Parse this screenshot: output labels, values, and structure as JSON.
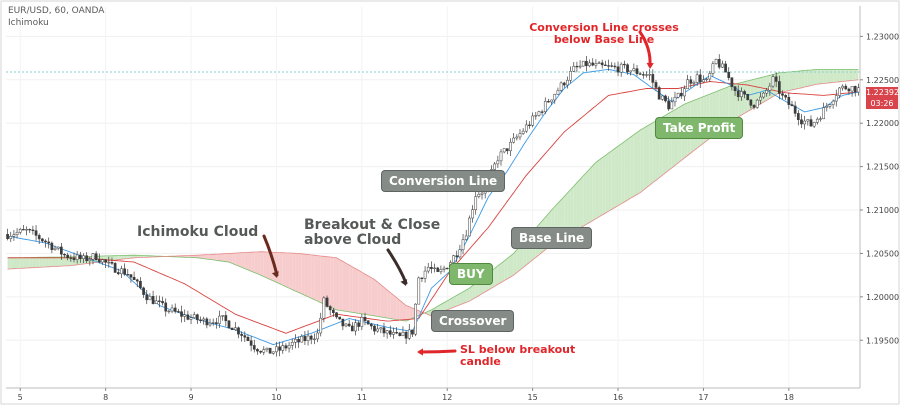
{
  "header": {
    "symbol_line": "EUR/USD, 60, OANDA",
    "indicator_line": "Ichimoku"
  },
  "colors": {
    "candle": "#3c3c3c",
    "conversion_line": "#3d9be8",
    "base_line": "#d9433f",
    "cloud_bull": "#cfe9c8",
    "cloud_bear": "#f7cccc",
    "annotation_box": "#858c88",
    "trade_box": "#7fb86d",
    "annotation_red": "#e0262a"
  },
  "annotations": {
    "conversion_crosses": "Conversion Line crosses below Base Line",
    "conversion_crosses_l1": "Conversion Line crosses",
    "conversion_crosses_l2": "below Base Line",
    "ichimoku_cloud": "Ichimoku Cloud",
    "breakout_l1": "Breakout & Close",
    "breakout_l2": "above Cloud",
    "conversion_line": "Conversion Line",
    "base_line": "Base Line",
    "buy": "BUY",
    "crossover": "Crossover",
    "take_profit": "Take Profit",
    "sl_l1": "SL below breakout",
    "sl_l2": "candle"
  },
  "price_tag": {
    "price": "1.22392",
    "countdown": "03:26"
  },
  "chart_data": {
    "type": "line",
    "chart_style": "candlestick with Ichimoku cloud",
    "x_ticks": [
      "5",
      "8",
      "9",
      "10",
      "11",
      "12",
      "15",
      "16",
      "17",
      "18"
    ],
    "y_ticks": [
      1.195,
      1.2,
      1.205,
      1.21,
      1.215,
      1.22,
      1.225,
      1.23
    ],
    "ylim": [
      1.1895,
      1.2335
    ],
    "grid": true,
    "reference_level": 1.2259,
    "price_path": [
      [
        0,
        1.2072
      ],
      [
        6,
        1.2076
      ],
      [
        12,
        1.2064
      ],
      [
        18,
        1.2048
      ],
      [
        24,
        1.2043
      ],
      [
        28,
        1.2047
      ],
      [
        32,
        1.2036
      ],
      [
        38,
        1.2027
      ],
      [
        44,
        1.2001
      ],
      [
        50,
        1.1986
      ],
      [
        56,
        1.1978
      ],
      [
        62,
        1.1972
      ],
      [
        68,
        1.1974
      ],
      [
        74,
        1.1958
      ],
      [
        78,
        1.1943
      ],
      [
        82,
        1.1936
      ],
      [
        86,
        1.1939
      ],
      [
        90,
        1.1946
      ],
      [
        94,
        1.1951
      ],
      [
        98,
        1.1957
      ],
      [
        100,
        1.1995
      ],
      [
        104,
        1.1973
      ],
      [
        108,
        1.1962
      ],
      [
        112,
        1.1972
      ],
      [
        116,
        1.1963
      ],
      [
        120,
        1.1958
      ],
      [
        124,
        1.1953
      ],
      [
        128,
        1.196
      ],
      [
        130,
        1.2022
      ],
      [
        133,
        1.2034
      ],
      [
        136,
        1.2026
      ],
      [
        139,
        1.2036
      ],
      [
        142,
        1.2051
      ],
      [
        145,
        1.2075
      ],
      [
        148,
        1.2118
      ],
      [
        151,
        1.2124
      ],
      [
        155,
        1.216
      ],
      [
        159,
        1.2175
      ],
      [
        163,
        1.2192
      ],
      [
        167,
        1.2208
      ],
      [
        171,
        1.2226
      ],
      [
        175,
        1.2243
      ],
      [
        179,
        1.2262
      ],
      [
        183,
        1.2268
      ],
      [
        187,
        1.2265
      ],
      [
        191,
        1.2264
      ],
      [
        195,
        1.2263
      ],
      [
        199,
        1.2259
      ],
      [
        203,
        1.2255
      ],
      [
        206,
        1.2232
      ],
      [
        209,
        1.222
      ],
      [
        212,
        1.223
      ],
      [
        215,
        1.2248
      ],
      [
        218,
        1.2253
      ],
      [
        221,
        1.2247
      ],
      [
        224,
        1.2272
      ],
      [
        227,
        1.2259
      ],
      [
        230,
        1.2238
      ],
      [
        233,
        1.223
      ],
      [
        236,
        1.2222
      ],
      [
        239,
        1.2231
      ],
      [
        242,
        1.225
      ],
      [
        245,
        1.223
      ],
      [
        248,
        1.2218
      ],
      [
        251,
        1.2204
      ],
      [
        254,
        1.2198
      ],
      [
        257,
        1.221
      ],
      [
        260,
        1.2225
      ],
      [
        263,
        1.224
      ],
      [
        266,
        1.2242
      ],
      [
        269,
        1.2239
      ]
    ],
    "conversion_line": [
      [
        0,
        1.207
      ],
      [
        12,
        1.2062
      ],
      [
        24,
        1.2046
      ],
      [
        36,
        1.203
      ],
      [
        48,
        1.199
      ],
      [
        60,
        1.1974
      ],
      [
        72,
        1.1962
      ],
      [
        84,
        1.1945
      ],
      [
        96,
        1.1958
      ],
      [
        108,
        1.1975
      ],
      [
        120,
        1.1965
      ],
      [
        128,
        1.196
      ],
      [
        134,
        1.201
      ],
      [
        140,
        1.203
      ],
      [
        146,
        1.207
      ],
      [
        152,
        1.2115
      ],
      [
        158,
        1.2145
      ],
      [
        164,
        1.218
      ],
      [
        170,
        1.2212
      ],
      [
        176,
        1.224
      ],
      [
        182,
        1.2258
      ],
      [
        190,
        1.2262
      ],
      [
        198,
        1.2256
      ],
      [
        204,
        1.224
      ],
      [
        210,
        1.2225
      ],
      [
        216,
        1.224
      ],
      [
        222,
        1.2255
      ],
      [
        228,
        1.2245
      ],
      [
        234,
        1.2232
      ],
      [
        240,
        1.2238
      ],
      [
        246,
        1.2225
      ],
      [
        252,
        1.2213
      ],
      [
        258,
        1.2218
      ],
      [
        264,
        1.2232
      ],
      [
        269,
        1.2236
      ]
    ],
    "base_line": [
      [
        0,
        1.2045
      ],
      [
        24,
        1.2045
      ],
      [
        40,
        1.204
      ],
      [
        56,
        1.2015
      ],
      [
        72,
        1.198
      ],
      [
        88,
        1.1958
      ],
      [
        104,
        1.198
      ],
      [
        120,
        1.1972
      ],
      [
        130,
        1.1975
      ],
      [
        140,
        1.203
      ],
      [
        152,
        1.208
      ],
      [
        164,
        1.214
      ],
      [
        176,
        1.219
      ],
      [
        190,
        1.2232
      ],
      [
        202,
        1.224
      ],
      [
        212,
        1.224
      ],
      [
        222,
        1.2248
      ],
      [
        234,
        1.2244
      ],
      [
        246,
        1.2235
      ],
      [
        258,
        1.2232
      ],
      [
        269,
        1.2236
      ]
    ],
    "cloud_span_a": [
      [
        0,
        1.2045
      ],
      [
        20,
        1.2046
      ],
      [
        40,
        1.2048
      ],
      [
        60,
        1.2045
      ],
      [
        70,
        1.204
      ],
      [
        80,
        1.2025
      ],
      [
        92,
        1.2005
      ],
      [
        104,
        1.1985
      ],
      [
        116,
        1.1978
      ],
      [
        126,
        1.1972
      ],
      [
        134,
        1.1985
      ],
      [
        146,
        1.201
      ],
      [
        160,
        1.205
      ],
      [
        172,
        1.21
      ],
      [
        186,
        1.2155
      ],
      [
        200,
        1.2192
      ],
      [
        214,
        1.2222
      ],
      [
        230,
        1.2245
      ],
      [
        244,
        1.2258
      ],
      [
        256,
        1.2262
      ],
      [
        269,
        1.2262
      ]
    ],
    "cloud_span_b": [
      [
        0,
        1.2032
      ],
      [
        20,
        1.2036
      ],
      [
        40,
        1.2045
      ],
      [
        60,
        1.2048
      ],
      [
        70,
        1.205
      ],
      [
        80,
        1.2052
      ],
      [
        92,
        1.205
      ],
      [
        104,
        1.2045
      ],
      [
        116,
        1.202
      ],
      [
        126,
        1.199
      ],
      [
        134,
        1.1978
      ],
      [
        146,
        1.1995
      ],
      [
        160,
        1.2025
      ],
      [
        172,
        1.206
      ],
      [
        186,
        1.209
      ],
      [
        200,
        1.212
      ],
      [
        214,
        1.216
      ],
      [
        230,
        1.2205
      ],
      [
        244,
        1.2235
      ],
      [
        256,
        1.2245
      ],
      [
        269,
        1.225
      ]
    ]
  }
}
